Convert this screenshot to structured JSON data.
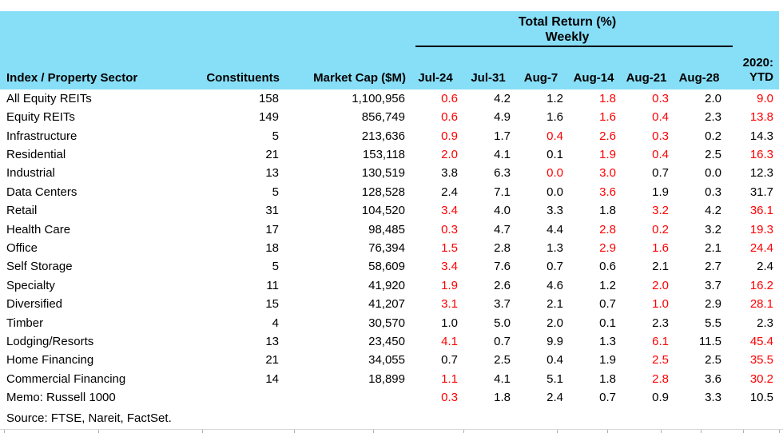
{
  "header": {
    "group_title_line1": "Total Return (%)",
    "group_title_line2": "Weekly",
    "ytd_line1": "2020:",
    "ytd_line2": "YTD"
  },
  "chart_data": {
    "type": "table",
    "title": "Total Return (%) Weekly",
    "columns": [
      "Index / Property Sector",
      "Constituents",
      "Market Cap ($M)",
      "Jul-24",
      "Jul-31",
      "Aug-7",
      "Aug-14",
      "Aug-21",
      "Aug-28",
      "2020: YTD"
    ],
    "rows": [
      {
        "sector": "All Equity REITs",
        "constituents": "158",
        "market_cap": "1,100,956",
        "weekly": [
          {
            "v": "0.6",
            "neg": true
          },
          {
            "v": "4.2",
            "neg": false
          },
          {
            "v": "1.2",
            "neg": false
          },
          {
            "v": "1.8",
            "neg": true
          },
          {
            "v": "0.3",
            "neg": true
          },
          {
            "v": "2.0",
            "neg": false
          }
        ],
        "ytd": {
          "v": "9.0",
          "neg": true
        }
      },
      {
        "sector": "Equity REITs",
        "constituents": "149",
        "market_cap": "856,749",
        "weekly": [
          {
            "v": "0.6",
            "neg": true
          },
          {
            "v": "4.9",
            "neg": false
          },
          {
            "v": "1.6",
            "neg": false
          },
          {
            "v": "1.6",
            "neg": true
          },
          {
            "v": "0.4",
            "neg": true
          },
          {
            "v": "2.3",
            "neg": false
          }
        ],
        "ytd": {
          "v": "13.8",
          "neg": true
        }
      },
      {
        "sector": "Infrastructure",
        "constituents": "5",
        "market_cap": "213,636",
        "weekly": [
          {
            "v": "0.9",
            "neg": true
          },
          {
            "v": "1.7",
            "neg": false
          },
          {
            "v": "0.4",
            "neg": true
          },
          {
            "v": "2.6",
            "neg": true
          },
          {
            "v": "0.3",
            "neg": true
          },
          {
            "v": "0.2",
            "neg": false
          }
        ],
        "ytd": {
          "v": "14.3",
          "neg": false
        }
      },
      {
        "sector": "Residential",
        "constituents": "21",
        "market_cap": "153,118",
        "weekly": [
          {
            "v": "2.0",
            "neg": true
          },
          {
            "v": "4.1",
            "neg": false
          },
          {
            "v": "0.1",
            "neg": false
          },
          {
            "v": "1.9",
            "neg": true
          },
          {
            "v": "0.4",
            "neg": true
          },
          {
            "v": "2.5",
            "neg": false
          }
        ],
        "ytd": {
          "v": "16.3",
          "neg": true
        }
      },
      {
        "sector": "Industrial",
        "constituents": "13",
        "market_cap": "130,519",
        "weekly": [
          {
            "v": "3.8",
            "neg": false
          },
          {
            "v": "6.3",
            "neg": false
          },
          {
            "v": "0.0",
            "neg": true
          },
          {
            "v": "3.0",
            "neg": true
          },
          {
            "v": "0.7",
            "neg": false
          },
          {
            "v": "0.0",
            "neg": false
          }
        ],
        "ytd": {
          "v": "12.3",
          "neg": false
        }
      },
      {
        "sector": "Data Centers",
        "constituents": "5",
        "market_cap": "128,528",
        "weekly": [
          {
            "v": "2.4",
            "neg": false
          },
          {
            "v": "7.1",
            "neg": false
          },
          {
            "v": "0.0",
            "neg": false
          },
          {
            "v": "3.6",
            "neg": true
          },
          {
            "v": "1.9",
            "neg": false
          },
          {
            "v": "0.3",
            "neg": false
          }
        ],
        "ytd": {
          "v": "31.7",
          "neg": false
        }
      },
      {
        "sector": "Retail",
        "constituents": "31",
        "market_cap": "104,520",
        "weekly": [
          {
            "v": "3.4",
            "neg": true
          },
          {
            "v": "4.0",
            "neg": false
          },
          {
            "v": "3.3",
            "neg": false
          },
          {
            "v": "1.8",
            "neg": false
          },
          {
            "v": "3.2",
            "neg": true
          },
          {
            "v": "4.2",
            "neg": false
          }
        ],
        "ytd": {
          "v": "36.1",
          "neg": true
        }
      },
      {
        "sector": "Health Care",
        "constituents": "17",
        "market_cap": "98,485",
        "weekly": [
          {
            "v": "0.3",
            "neg": true
          },
          {
            "v": "4.7",
            "neg": false
          },
          {
            "v": "4.4",
            "neg": false
          },
          {
            "v": "2.8",
            "neg": true
          },
          {
            "v": "0.2",
            "neg": true
          },
          {
            "v": "3.2",
            "neg": false
          }
        ],
        "ytd": {
          "v": "19.3",
          "neg": true
        }
      },
      {
        "sector": "Office",
        "constituents": "18",
        "market_cap": "76,394",
        "weekly": [
          {
            "v": "1.5",
            "neg": true
          },
          {
            "v": "2.8",
            "neg": false
          },
          {
            "v": "1.3",
            "neg": false
          },
          {
            "v": "2.9",
            "neg": true
          },
          {
            "v": "1.6",
            "neg": true
          },
          {
            "v": "2.1",
            "neg": false
          }
        ],
        "ytd": {
          "v": "24.4",
          "neg": true
        }
      },
      {
        "sector": "Self Storage",
        "constituents": "5",
        "market_cap": "58,609",
        "weekly": [
          {
            "v": "3.4",
            "neg": true
          },
          {
            "v": "7.6",
            "neg": false
          },
          {
            "v": "0.7",
            "neg": false
          },
          {
            "v": "0.6",
            "neg": false
          },
          {
            "v": "2.1",
            "neg": false
          },
          {
            "v": "2.7",
            "neg": false
          }
        ],
        "ytd": {
          "v": "2.4",
          "neg": false
        }
      },
      {
        "sector": "Specialty",
        "constituents": "11",
        "market_cap": "41,920",
        "weekly": [
          {
            "v": "1.9",
            "neg": true
          },
          {
            "v": "2.6",
            "neg": false
          },
          {
            "v": "4.6",
            "neg": false
          },
          {
            "v": "1.2",
            "neg": false
          },
          {
            "v": "2.0",
            "neg": true
          },
          {
            "v": "3.7",
            "neg": false
          }
        ],
        "ytd": {
          "v": "16.2",
          "neg": true
        }
      },
      {
        "sector": "Diversified",
        "constituents": "15",
        "market_cap": "41,207",
        "weekly": [
          {
            "v": "3.1",
            "neg": true
          },
          {
            "v": "3.7",
            "neg": false
          },
          {
            "v": "2.1",
            "neg": false
          },
          {
            "v": "0.7",
            "neg": false
          },
          {
            "v": "1.0",
            "neg": true
          },
          {
            "v": "2.9",
            "neg": false
          }
        ],
        "ytd": {
          "v": "28.1",
          "neg": true
        }
      },
      {
        "sector": "Timber",
        "constituents": "4",
        "market_cap": "30,570",
        "weekly": [
          {
            "v": "1.0",
            "neg": false
          },
          {
            "v": "5.0",
            "neg": false
          },
          {
            "v": "2.0",
            "neg": false
          },
          {
            "v": "0.1",
            "neg": false
          },
          {
            "v": "2.3",
            "neg": false
          },
          {
            "v": "5.5",
            "neg": false
          }
        ],
        "ytd": {
          "v": "2.3",
          "neg": false
        }
      },
      {
        "sector": "Lodging/Resorts",
        "constituents": "13",
        "market_cap": "23,450",
        "weekly": [
          {
            "v": "4.1",
            "neg": true
          },
          {
            "v": "0.7",
            "neg": false
          },
          {
            "v": "9.9",
            "neg": false
          },
          {
            "v": "1.3",
            "neg": false
          },
          {
            "v": "6.1",
            "neg": true
          },
          {
            "v": "11.5",
            "neg": false
          }
        ],
        "ytd": {
          "v": "45.4",
          "neg": true
        }
      },
      {
        "sector": "Home Financing",
        "constituents": "21",
        "market_cap": "34,055",
        "weekly": [
          {
            "v": "0.7",
            "neg": false
          },
          {
            "v": "2.5",
            "neg": false
          },
          {
            "v": "0.4",
            "neg": false
          },
          {
            "v": "1.9",
            "neg": false
          },
          {
            "v": "2.5",
            "neg": true
          },
          {
            "v": "2.5",
            "neg": false
          }
        ],
        "ytd": {
          "v": "35.5",
          "neg": true
        }
      },
      {
        "sector": "Commercial Financing",
        "constituents": "14",
        "market_cap": "18,899",
        "weekly": [
          {
            "v": "1.1",
            "neg": true
          },
          {
            "v": "4.1",
            "neg": false
          },
          {
            "v": "5.1",
            "neg": false
          },
          {
            "v": "1.8",
            "neg": false
          },
          {
            "v": "2.8",
            "neg": true
          },
          {
            "v": "3.6",
            "neg": false
          }
        ],
        "ytd": {
          "v": "30.2",
          "neg": true
        }
      },
      {
        "sector": "Memo: Russell 1000",
        "constituents": "",
        "market_cap": "",
        "weekly": [
          {
            "v": "0.3",
            "neg": true
          },
          {
            "v": "1.8",
            "neg": false
          },
          {
            "v": "2.4",
            "neg": false
          },
          {
            "v": "0.7",
            "neg": false
          },
          {
            "v": "0.9",
            "neg": false
          },
          {
            "v": "3.3",
            "neg": false
          }
        ],
        "ytd": {
          "v": "10.5",
          "neg": false
        }
      }
    ]
  },
  "footer": {
    "source": "Source: FTSE, Nareit, FactSet."
  },
  "colors": {
    "header_bg": "#87DEF7",
    "negative": "#FF0000",
    "text": "#000000"
  }
}
